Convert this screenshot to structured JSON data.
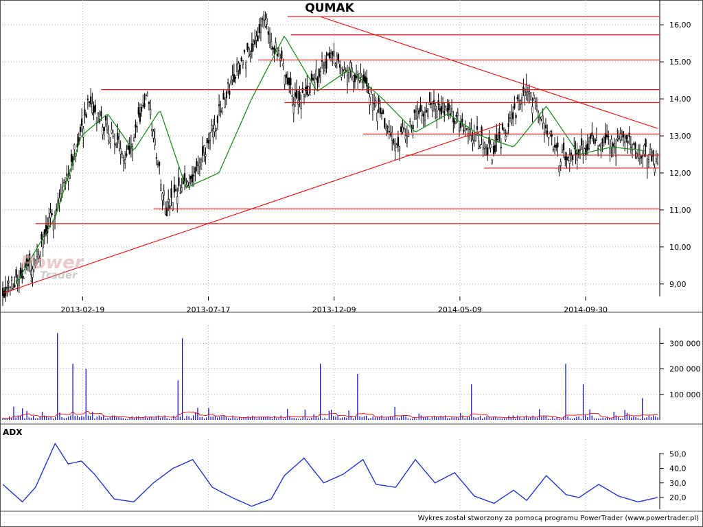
{
  "title": "QUMAK",
  "watermark": {
    "line1": "Power",
    "line2": "Trader"
  },
  "adx_label": "ADX",
  "footer": "Wykres został stworzony za pomocą programu PowerTrader (www.powertrader.pl)",
  "colors": {
    "candle": "#000000",
    "moving_average": "#1e8c1e",
    "support_resistance": "#e41a1a",
    "volume_bar": "#0000cc",
    "volume_average": "#e41a1a",
    "adx_line": "#2233cc",
    "grid": "#a8a8a8"
  },
  "chart_data": [
    {
      "type": "candlestick",
      "panel": "price",
      "ylim": [
        8.7,
        16.3
      ],
      "y_ticks": [
        "9,00",
        "10,00",
        "11,00",
        "12,00",
        "13,00",
        "14,00",
        "15,00",
        "16,00"
      ],
      "x_tick_labels": [
        "2013-02-19",
        "2013-07-17",
        "2013-12-09",
        "2014-05-09",
        "2014-09-30"
      ],
      "grid": true,
      "series": [
        {
          "name": "",
          "kind": "close-path",
          "x": [
            0,
            0.05,
            0.1,
            0.13,
            0.19,
            0.22,
            0.25,
            0.3,
            0.35,
            0.4,
            0.45,
            0.5,
            0.55,
            0.6,
            0.65,
            0.7,
            0.75,
            0.8,
            0.85,
            0.9,
            0.95,
            1
          ],
          "values": [
            8.8,
            9.6,
            12.0,
            13.8,
            12.5,
            14.1,
            11.0,
            12.2,
            14.5,
            16.1,
            13.8,
            15.2,
            14.5,
            12.8,
            13.9,
            13.4,
            12.5,
            14.3,
            12.4,
            12.8,
            12.9,
            12.3
          ]
        },
        {
          "name": "",
          "kind": "moving-average",
          "x": [
            0.02,
            0.08,
            0.12,
            0.16,
            0.2,
            0.24,
            0.28,
            0.33,
            0.38,
            0.43,
            0.48,
            0.53,
            0.58,
            0.63,
            0.68,
            0.73,
            0.78,
            0.83,
            0.88,
            0.93,
            0.98
          ],
          "values": [
            9.0,
            10.8,
            13.0,
            13.6,
            12.6,
            13.7,
            11.6,
            12.0,
            14.0,
            15.7,
            14.2,
            14.8,
            14.0,
            13.1,
            13.6,
            13.0,
            12.7,
            13.8,
            12.5,
            12.7,
            12.6
          ]
        }
      ],
      "horizontal_levels": [
        {
          "value": 16.22,
          "x_start": 0.435
        },
        {
          "value": 15.73,
          "x_start": 0.44
        },
        {
          "value": 15.05,
          "x_start": 0.39
        },
        {
          "value": 14.25,
          "x_start": 0.15
        },
        {
          "value": 13.9,
          "x_start": 0.43
        },
        {
          "value": 13.05,
          "x_start": 0.55
        },
        {
          "value": 12.48,
          "x_start": 0.615
        },
        {
          "value": 12.13,
          "x_start": 0.735
        },
        {
          "value": 11.03,
          "x_start": 0.23
        },
        {
          "value": 10.63,
          "x_start": 0.05
        }
      ],
      "trend_lines": [
        {
          "x": [
            0.0,
            0.762
          ],
          "values": [
            8.75,
            13.32
          ]
        },
        {
          "x": [
            0.485,
            1.0
          ],
          "values": [
            16.22,
            13.2
          ]
        }
      ]
    },
    {
      "type": "bar",
      "panel": "volume",
      "ylim": [
        0,
        360000
      ],
      "y_ticks": [
        "100 000",
        "200 000",
        "300 000"
      ],
      "spikes": [
        {
          "x": 0.082,
          "value": 340000
        },
        {
          "x": 0.107,
          "value": 220000
        },
        {
          "x": 0.127,
          "value": 200000
        },
        {
          "x": 0.275,
          "value": 320000
        },
        {
          "x": 0.267,
          "value": 155000
        },
        {
          "x": 0.486,
          "value": 220000
        },
        {
          "x": 0.542,
          "value": 180000
        },
        {
          "x": 0.715,
          "value": 140000
        },
        {
          "x": 0.86,
          "value": 220000
        },
        {
          "x": 0.887,
          "value": 140000
        },
        {
          "x": 0.975,
          "value": 85000
        }
      ]
    },
    {
      "type": "line",
      "panel": "adx",
      "name": "ADX",
      "ylim": [
        12,
        60
      ],
      "y_ticks": [
        "20,0",
        "30,0",
        "40,0",
        "50,0"
      ],
      "x": [
        0,
        0.03,
        0.05,
        0.08,
        0.1,
        0.12,
        0.14,
        0.17,
        0.2,
        0.23,
        0.26,
        0.29,
        0.32,
        0.35,
        0.38,
        0.41,
        0.43,
        0.46,
        0.49,
        0.52,
        0.55,
        0.57,
        0.6,
        0.63,
        0.66,
        0.69,
        0.72,
        0.75,
        0.78,
        0.8,
        0.83,
        0.86,
        0.88,
        0.91,
        0.94,
        0.97,
        1
      ],
      "values": [
        29,
        17,
        27,
        57,
        43,
        45,
        36,
        19,
        17,
        30,
        40,
        46,
        27,
        20,
        14,
        19,
        35,
        47,
        30,
        36,
        46,
        29,
        27,
        46,
        30,
        37,
        21,
        16,
        25,
        18,
        35,
        22,
        20,
        29,
        21,
        17,
        20
      ]
    }
  ]
}
